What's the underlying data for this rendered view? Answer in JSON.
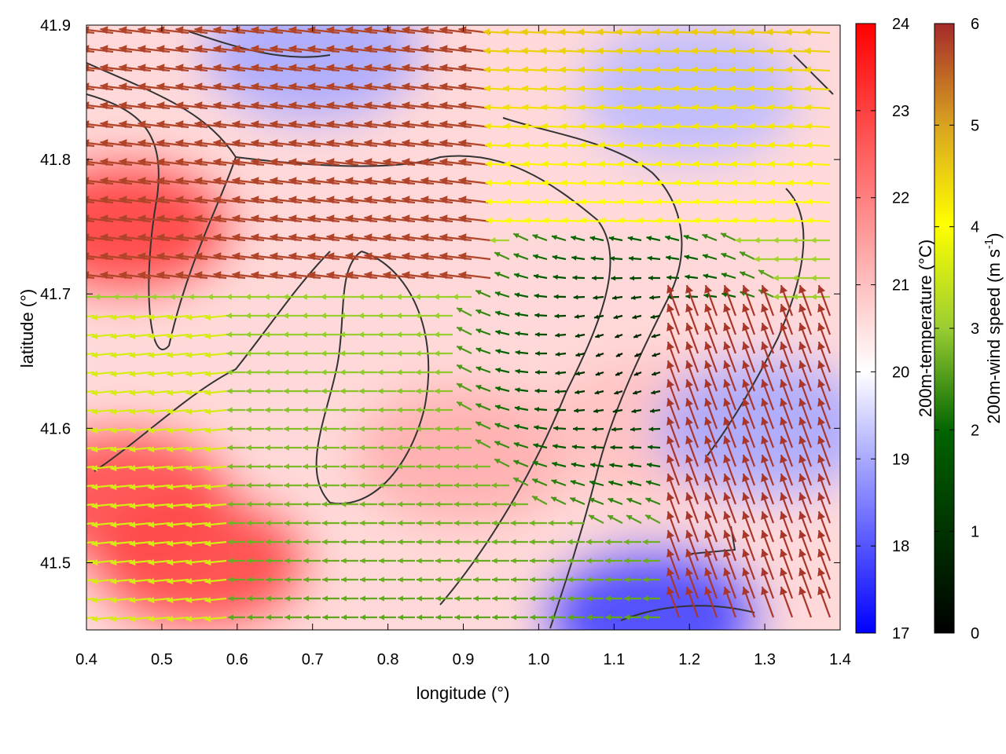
{
  "chart_data": {
    "type": "heatmap",
    "title": "",
    "xlabel": "longitude (°)",
    "ylabel": "latitude (°)",
    "xlim": [
      0.4,
      1.4
    ],
    "ylim": [
      41.45,
      41.9
    ],
    "x_ticks": [
      "0.4",
      "0.5",
      "0.6",
      "0.7",
      "0.8",
      "0.9",
      "1.0",
      "1.1",
      "1.2",
      "1.3",
      "1.4"
    ],
    "y_ticks": [
      "41.5",
      "41.6",
      "41.7",
      "41.8",
      "41.9"
    ],
    "temperature_colorbar": {
      "label": "200m-temperature (°C)",
      "range": [
        17,
        24
      ],
      "ticks": [
        "17",
        "18",
        "19",
        "20",
        "21",
        "22",
        "23",
        "24"
      ],
      "colors": [
        "#0000ff",
        "#ffffff",
        "#ff0000"
      ]
    },
    "wind_colorbar": {
      "label_parts": [
        "200m-wind speed (m s",
        "-1",
        ")"
      ],
      "range": [
        0,
        6
      ],
      "ticks": [
        "0",
        "1",
        "2",
        "3",
        "4",
        "5",
        "6"
      ],
      "colors": [
        "#000000",
        "#006400",
        "#9acd32",
        "#ffff00",
        "#daa520",
        "#a52a2a"
      ]
    },
    "temperature_field": {
      "note_values_degC_sampled_regions": [
        {
          "lon": 0.45,
          "lat": 41.75,
          "t": 23.0
        },
        {
          "lon": 0.45,
          "lat": 41.55,
          "t": 22.8
        },
        {
          "lon": 0.55,
          "lat": 41.5,
          "t": 22.9
        },
        {
          "lon": 0.9,
          "lat": 41.58,
          "t": 21.3
        },
        {
          "lon": 1.15,
          "lat": 41.6,
          "t": 21.0
        },
        {
          "lon": 0.7,
          "lat": 41.88,
          "t": 19.0
        },
        {
          "lon": 1.2,
          "lat": 41.85,
          "t": 19.2
        },
        {
          "lon": 1.3,
          "lat": 41.6,
          "t": 19.0
        },
        {
          "lon": 1.15,
          "lat": 41.46,
          "t": 17.8
        }
      ]
    },
    "wind_field_regions": [
      {
        "region": "north-west plain",
        "speed_ms": 6.0,
        "direction": "westward"
      },
      {
        "region": "central basin",
        "speed_ms": 0.5,
        "direction": "weak / variable"
      },
      {
        "region": "south-west",
        "speed_ms": 3.0,
        "direction": "westward"
      },
      {
        "region": "east coast",
        "speed_ms": 6.0,
        "direction": "northward"
      },
      {
        "region": "north-east",
        "speed_ms": 4.5,
        "direction": "westward"
      }
    ],
    "grid": false,
    "legend": "colorbars right"
  }
}
